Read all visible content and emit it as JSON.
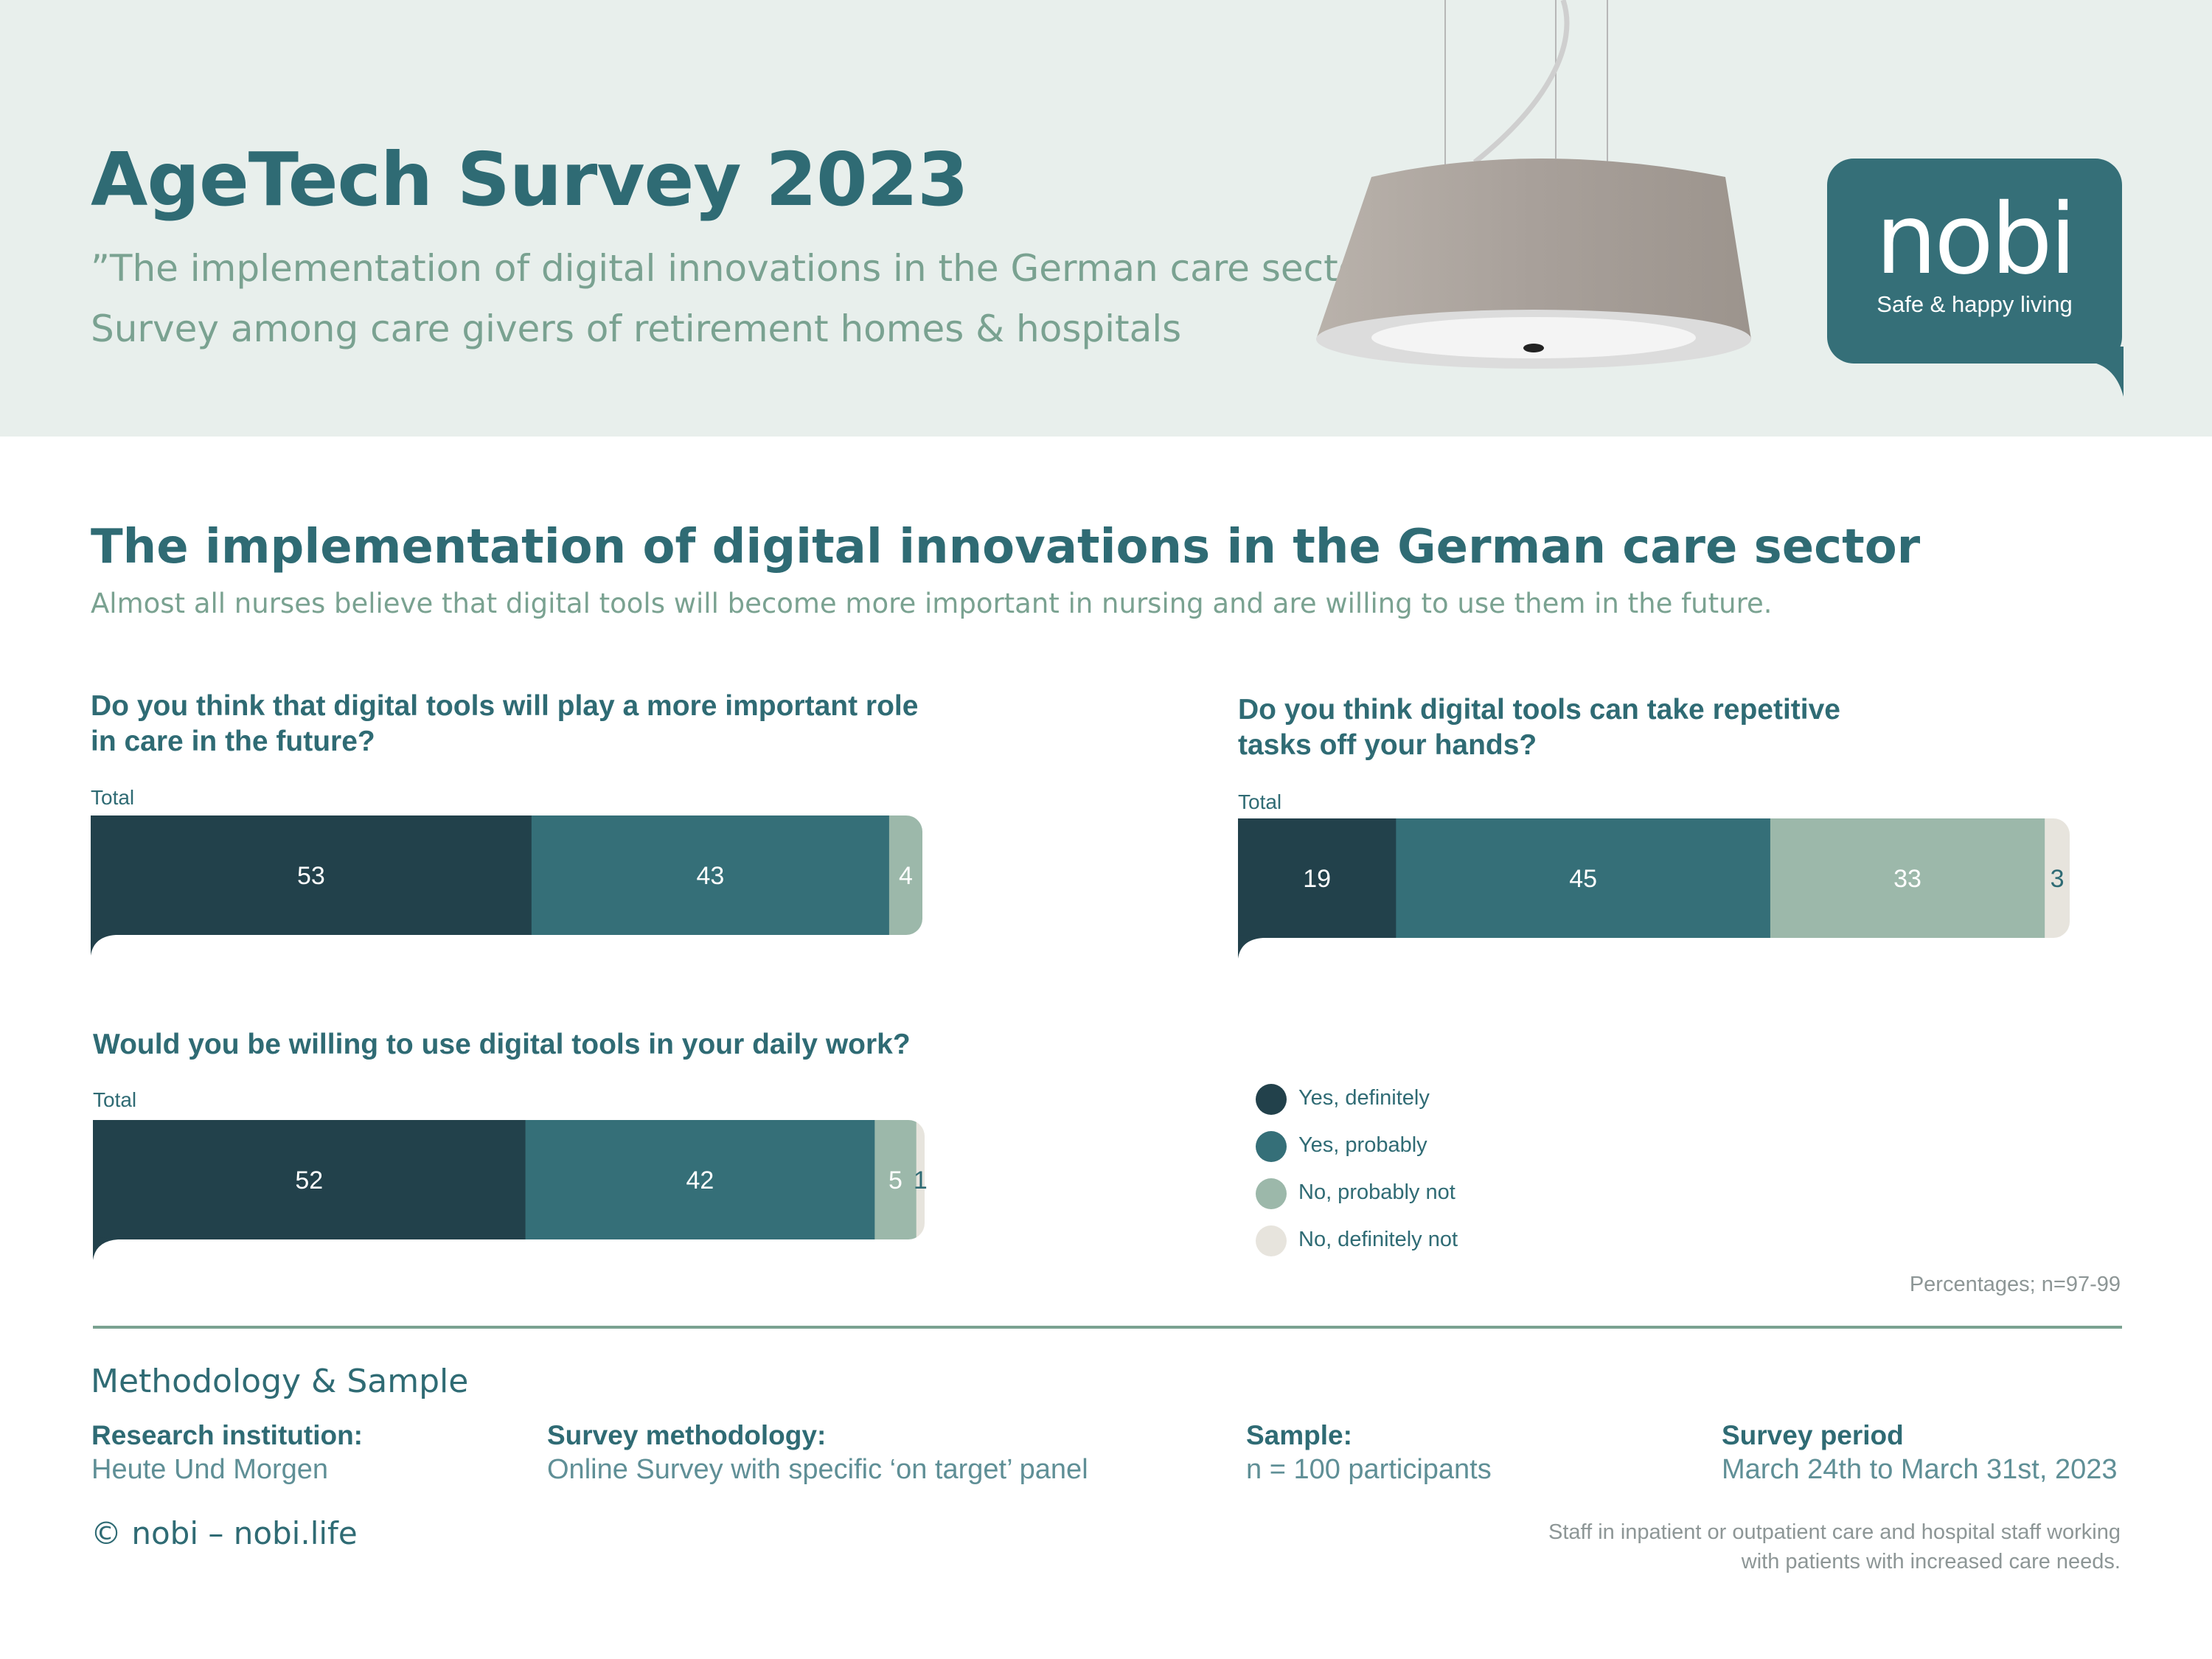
{
  "header": {
    "title": "AgeTech Survey 2023",
    "quote_subtitle": "”The implementation of digital innovations in the German care sector”",
    "survey_subtitle": "Survey among care givers of retirement homes & hospitals"
  },
  "logo": {
    "wordmark": "nobi",
    "tagline": "Safe & happy living"
  },
  "section": {
    "title": "The implementation of digital innovations in the German care sector",
    "subtitle": "Almost all nurses believe that digital tools will become more important in nursing and are willing to use them in the future."
  },
  "colors": {
    "yes_definitely": "#22414b",
    "yes_probably": "#356f78",
    "no_probably_not": "#9cb8aa",
    "no_definitely_not": "#e7e4dd",
    "header_background": "#e8efec",
    "accent": "#2f6b74"
  },
  "chart_data": [
    {
      "type": "bar",
      "orientation": "horizontal-stacked",
      "title_lines": [
        "Do you think that digital tools will play a more important role",
        "in care in the future?"
      ],
      "category_label": "Total",
      "series": [
        {
          "name": "Yes, definitely",
          "value": 53
        },
        {
          "name": "Yes, probably",
          "value": 43
        },
        {
          "name": "No, probably not",
          "value": 4
        }
      ]
    },
    {
      "type": "bar",
      "orientation": "horizontal-stacked",
      "title_lines": [
        "Do you think digital tools can take repetitive",
        "tasks off your hands?"
      ],
      "category_label": "Total",
      "series": [
        {
          "name": "Yes, definitely",
          "value": 19
        },
        {
          "name": "Yes, probably",
          "value": 45
        },
        {
          "name": "No, probably not",
          "value": 33
        },
        {
          "name": "No, definitely not",
          "value": 3
        }
      ]
    },
    {
      "type": "bar",
      "orientation": "horizontal-stacked",
      "title_lines": [
        "Would you be willing to use digital tools in your daily work?"
      ],
      "category_label": "Total",
      "series": [
        {
          "name": "Yes, definitely",
          "value": 52
        },
        {
          "name": "Yes, probably",
          "value": 42
        },
        {
          "name": "No, probably not",
          "value": 5
        },
        {
          "name": "No, definitely not",
          "value": 1
        }
      ]
    }
  ],
  "legend": {
    "placement": "bottom-right",
    "items": [
      {
        "label": "Yes, definitely",
        "color": "#22414b"
      },
      {
        "label": "Yes, probably",
        "color": "#356f78"
      },
      {
        "label": "No, probably not",
        "color": "#9cb8aa"
      },
      {
        "label": "No, definitely not",
        "color": "#e7e4dd"
      }
    ]
  },
  "note": "Percentages; n=97-99",
  "methodology": {
    "title": "Methodology & Sample",
    "research_institution_label": "Research institution:",
    "research_institution_value": "Heute Und Morgen",
    "survey_methodology_label": "Survey methodology:",
    "survey_methodology_value": "Online Survey with specific ‘on target’ panel",
    "sample_label": "Sample:",
    "sample_value": "n = 100 participants",
    "survey_period_label": "Survey period",
    "survey_period_value": "March 24th to March 31st, 2023"
  },
  "footer": {
    "copyright": "© nobi – nobi.life",
    "footnote_line1": "Staff in inpatient or outpatient care and hospital staff working",
    "footnote_line2": "with patients with increased care needs."
  }
}
